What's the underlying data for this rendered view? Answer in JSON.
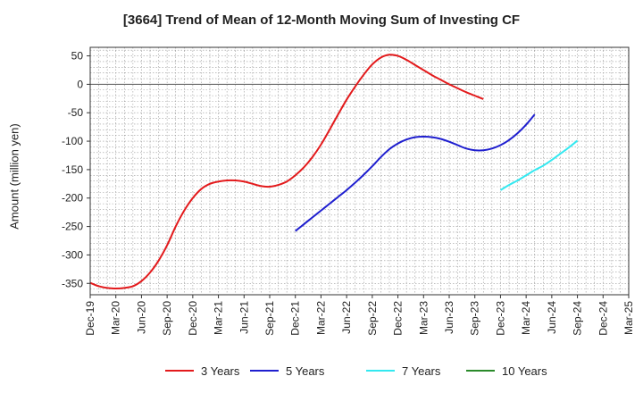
{
  "chart_data": {
    "type": "line",
    "title": "[3664]  Trend of Mean of 12-Month Moving Sum of Investing CF",
    "xlabel": "",
    "ylabel": "Amount (million yen)",
    "ylim": [
      -370,
      65
    ],
    "yticks": [
      50,
      0,
      -50,
      -100,
      -150,
      -200,
      -250,
      -300,
      -350
    ],
    "x_ticks": [
      "Dec-19",
      "Mar-20",
      "Jun-20",
      "Sep-20",
      "Dec-20",
      "Mar-21",
      "Jun-21",
      "Sep-21",
      "Dec-21",
      "Mar-22",
      "Jun-22",
      "Sep-22",
      "Dec-22",
      "Mar-23",
      "Jun-23",
      "Sep-23",
      "Dec-23",
      "Mar-24",
      "Jun-24",
      "Sep-24",
      "Dec-24",
      "Mar-25"
    ],
    "grid": true,
    "legend_position": "bottom",
    "series": [
      {
        "name": "3 Years",
        "color": "#e31a1c",
        "start_index": 0,
        "values": [
          -349,
          -355,
          -358,
          -359,
          -358,
          -355,
          -346,
          -331,
          -310,
          -283,
          -250,
          -222,
          -200,
          -184,
          -175,
          -171,
          -169,
          -169,
          -171,
          -175,
          -179,
          -180,
          -177,
          -171,
          -160,
          -146,
          -128,
          -106,
          -80,
          -53,
          -27,
          -4,
          17,
          35,
          47,
          52,
          50,
          43,
          34,
          25,
          16,
          8,
          0,
          -7,
          -14,
          -20,
          -26
        ]
      },
      {
        "name": "5 Years",
        "color": "#1f1fcf",
        "start_index": 24,
        "values": [
          -258,
          -246,
          -234,
          -222,
          -210,
          -198,
          -186,
          -173,
          -159,
          -144,
          -128,
          -114,
          -104,
          -97,
          -93,
          -92,
          -93,
          -96,
          -101,
          -107,
          -113,
          -116,
          -116,
          -113,
          -107,
          -98,
          -86,
          -71,
          -53
        ]
      },
      {
        "name": "7 Years",
        "color": "#33e8f0",
        "start_index": 48,
        "values": [
          -186,
          -177,
          -169,
          -160,
          -151,
          -143,
          -133,
          -122,
          -111,
          -99
        ]
      },
      {
        "name": "10 Years",
        "color": "#2a8a2a",
        "start_index": 0,
        "values": []
      }
    ]
  }
}
